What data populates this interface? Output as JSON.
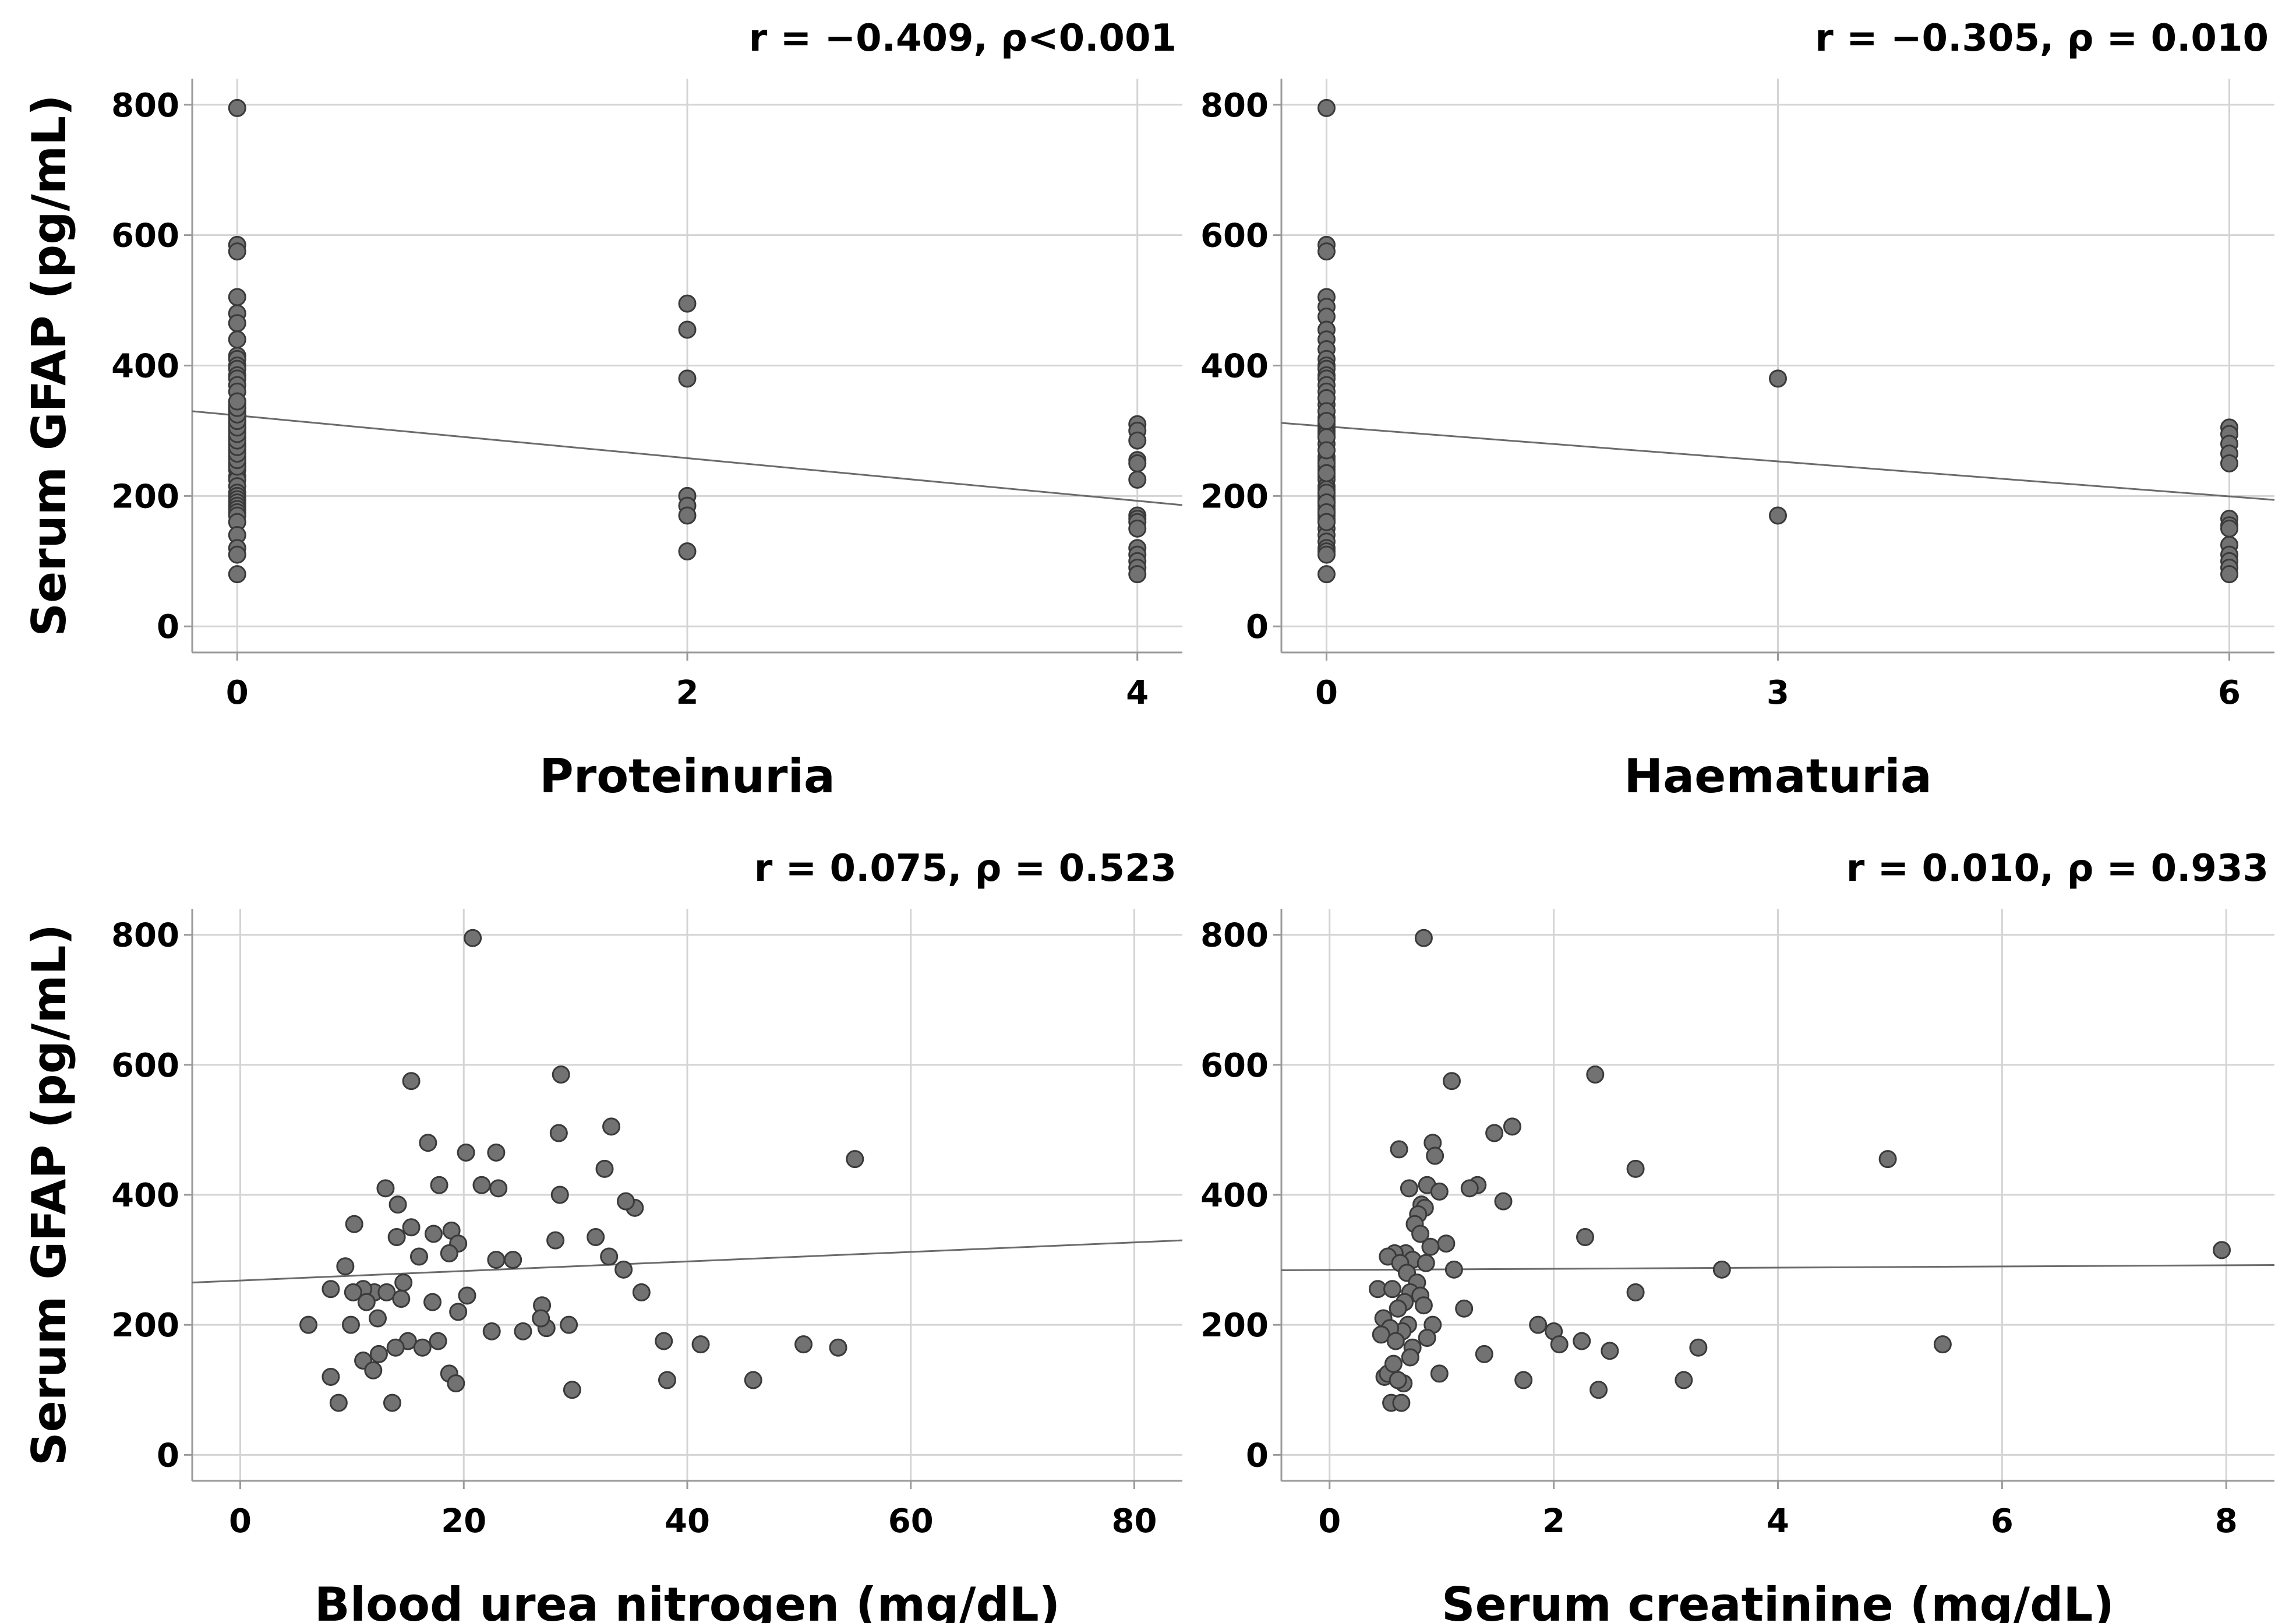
{
  "chart_data": [
    {
      "type": "scatter",
      "title": "",
      "xlabel": "Proteinuria",
      "ylabel": "Serum GFAP (pg/mL)",
      "correlation_label": "r = −0.409, ρ<0.001",
      "x_ticks": [
        0,
        2,
        4
      ],
      "y_ticks": [
        0,
        200,
        400,
        600,
        800
      ],
      "xlim": [
        -0.2,
        4.2
      ],
      "ylim": [
        -40,
        840
      ],
      "grid": true,
      "fit_line": {
        "x": [
          -0.2,
          4.2
        ],
        "y": [
          330,
          186
        ]
      },
      "points": {
        "x": [
          0,
          0,
          0,
          0,
          0,
          0,
          0,
          0,
          0,
          0,
          0,
          0,
          0,
          0,
          0,
          0,
          0,
          0,
          0,
          0,
          0,
          0,
          0,
          0,
          0,
          0,
          0,
          0,
          0,
          0,
          0,
          0,
          0,
          0,
          0,
          0,
          0,
          0,
          0,
          0,
          0,
          0,
          0,
          0,
          0,
          0,
          0,
          0,
          0,
          0,
          0,
          0,
          0,
          0,
          0,
          0,
          0,
          0,
          2,
          2,
          2,
          2,
          2,
          2,
          2,
          4,
          4,
          4,
          4,
          4,
          4,
          4,
          4,
          4,
          4,
          4,
          4,
          4,
          4,
          4
        ],
        "y": [
          795,
          585,
          575,
          505,
          480,
          465,
          440,
          415,
          410,
          400,
          395,
          385,
          380,
          370,
          360,
          345,
          340,
          335,
          330,
          325,
          320,
          315,
          310,
          305,
          300,
          290,
          280,
          270,
          260,
          250,
          240,
          230,
          225,
          215,
          205,
          200,
          195,
          190,
          185,
          180,
          175,
          170,
          160,
          140,
          120,
          110,
          80,
          245,
          255,
          265,
          275,
          285,
          295,
          305,
          315,
          325,
          335,
          345,
          495,
          455,
          380,
          200,
          185,
          170,
          115,
          310,
          300,
          285,
          255,
          250,
          225,
          170,
          165,
          160,
          150,
          120,
          110,
          100,
          90,
          80
        ]
      }
    },
    {
      "type": "scatter",
      "title": "",
      "xlabel": "Haematuria",
      "ylabel": "",
      "correlation_label": "r = −0.305, ρ = 0.010",
      "x_ticks": [
        0,
        3,
        6
      ],
      "y_ticks": [
        0,
        200,
        400,
        600,
        800
      ],
      "xlim": [
        -0.3,
        6.3
      ],
      "ylim": [
        -40,
        840
      ],
      "grid": true,
      "fit_line": {
        "x": [
          -0.3,
          6.3
        ],
        "y": [
          312,
          194
        ]
      },
      "points": {
        "x": [
          0,
          0,
          0,
          0,
          0,
          0,
          0,
          0,
          0,
          0,
          0,
          0,
          0,
          0,
          0,
          0,
          0,
          0,
          0,
          0,
          0,
          0,
          0,
          0,
          0,
          0,
          0,
          0,
          0,
          0,
          0,
          0,
          0,
          0,
          0,
          0,
          0,
          0,
          0,
          0,
          0,
          0,
          0,
          0,
          0,
          0,
          0,
          0,
          0,
          0,
          0,
          0,
          0,
          0,
          0,
          0,
          0,
          0,
          0,
          0,
          0,
          0,
          3,
          3,
          6,
          6,
          6,
          6,
          6,
          6,
          6,
          6,
          6,
          6,
          6,
          6,
          6
        ],
        "y": [
          795,
          585,
          575,
          505,
          490,
          475,
          455,
          440,
          425,
          410,
          400,
          395,
          385,
          380,
          370,
          360,
          350,
          340,
          330,
          320,
          310,
          305,
          300,
          295,
          290,
          280,
          270,
          260,
          255,
          245,
          240,
          230,
          225,
          215,
          210,
          200,
          195,
          190,
          185,
          180,
          175,
          170,
          165,
          160,
          150,
          140,
          130,
          120,
          115,
          110,
          80,
          250,
          235,
          205,
          190,
          175,
          160,
          350,
          330,
          315,
          290,
          270,
          380,
          170,
          305,
          295,
          280,
          265,
          250,
          165,
          155,
          150,
          125,
          110,
          100,
          90,
          80
        ]
      }
    },
    {
      "type": "scatter",
      "title": "",
      "xlabel": "Blood urea nitrogen (mg/dL)",
      "ylabel": "Serum GFAP (pg/mL)",
      "correlation_label": "r = 0.075, ρ = 0.523",
      "x_ticks": [
        0,
        20,
        40,
        60,
        80
      ],
      "y_ticks": [
        0,
        200,
        400,
        600,
        800
      ],
      "xlim": [
        -4.3,
        84.3
      ],
      "ylim": [
        -40,
        840
      ],
      "grid": true,
      "fit_line": {
        "x": [
          -4.3,
          84.3
        ],
        "y": [
          265,
          330
        ]
      },
      "points": {
        "x": [
          20.8,
          15.3,
          28.7,
          16.8,
          20.2,
          22.9,
          33.2,
          28.5,
          17.8,
          21.6,
          23.1,
          13,
          32.6,
          28.6,
          35.3,
          34.5,
          14.1,
          31.8,
          15.3,
          18.9,
          10.2,
          14,
          17.3,
          24.4,
          9.4,
          19.5,
          33,
          16,
          18.7,
          22.9,
          34.3,
          14.6,
          8.1,
          12,
          11,
          13.1,
          17.2,
          10.1,
          28.2,
          20.3,
          14.4,
          11.3,
          35.9,
          27,
          19.5,
          25.3,
          6.1,
          22.5,
          27.4,
          29.4,
          9.9,
          12.3,
          17.7,
          26.9,
          15,
          13.9,
          12.4,
          37.9,
          41.2,
          50.4,
          53.5,
          16.3,
          11,
          11.9,
          8.1,
          18.7,
          38.2,
          45.9,
          19.3,
          29.7,
          13.6,
          8.8,
          55
        ],
        "y": [
          795,
          575,
          585,
          480,
          465,
          465,
          505,
          495,
          415,
          415,
          410,
          410,
          440,
          400,
          380,
          390,
          385,
          335,
          350,
          345,
          355,
          335,
          340,
          300,
          290,
          325,
          305,
          305,
          310,
          300,
          285,
          265,
          255,
          250,
          255,
          250,
          235,
          250,
          330,
          245,
          240,
          235,
          250,
          230,
          220,
          190,
          200,
          190,
          195,
          200,
          200,
          210,
          175,
          210,
          175,
          165,
          155,
          175,
          170,
          170,
          165,
          165,
          145,
          130,
          120,
          125,
          115,
          115,
          110,
          100,
          80,
          80,
          455
        ]
      }
    },
    {
      "type": "scatter",
      "title": "",
      "xlabel": "Serum creatinine (mg/dL)",
      "ylabel": "",
      "correlation_label": "r = 0.010, ρ = 0.933",
      "x_ticks": [
        0,
        2,
        4,
        6,
        8
      ],
      "y_ticks": [
        0,
        200,
        400,
        600,
        800
      ],
      "xlim": [
        -0.43,
        8.43
      ],
      "ylim": [
        -40,
        840
      ],
      "grid": true,
      "fit_line": {
        "x": [
          -0.43,
          8.43
        ],
        "y": [
          284,
          292
        ]
      },
      "points": {
        "x": [
          0.84,
          1.09,
          2.37,
          1.63,
          0.92,
          0.62,
          1.47,
          0.71,
          0.94,
          2.73,
          0.87,
          1.32,
          0.98,
          1.25,
          0.82,
          1.55,
          0.85,
          0.79,
          0.76,
          2.28,
          1.04,
          0.81,
          0.68,
          0.9,
          0.74,
          0.58,
          1.11,
          0.52,
          0.63,
          0.86,
          3.5,
          0.69,
          0.78,
          0.43,
          0.56,
          0.72,
          0.81,
          2.73,
          0.67,
          0.84,
          0.61,
          0.48,
          1.2,
          0.92,
          0.7,
          1.86,
          0.65,
          0.54,
          2,
          0.46,
          0.87,
          0.59,
          2.5,
          0.74,
          2.05,
          3.29,
          2.25,
          1.38,
          0.98,
          0.66,
          0.72,
          0.49,
          0.52,
          1.73,
          0.61,
          3.16,
          2.4,
          0.55,
          0.64,
          4.98,
          5.47,
          7.96,
          0.57
        ],
        "y": [
          795,
          575,
          585,
          505,
          480,
          470,
          495,
          410,
          460,
          440,
          415,
          415,
          405,
          410,
          385,
          390,
          380,
          370,
          355,
          335,
          325,
          340,
          310,
          320,
          300,
          310,
          285,
          305,
          295,
          295,
          285,
          280,
          265,
          255,
          255,
          250,
          245,
          250,
          235,
          230,
          225,
          210,
          225,
          200,
          200,
          200,
          190,
          195,
          190,
          185,
          180,
          175,
          160,
          165,
          170,
          165,
          175,
          155,
          125,
          110,
          150,
          120,
          125,
          115,
          115,
          115,
          100,
          80,
          80,
          455,
          170,
          315,
          140
        ]
      }
    }
  ]
}
